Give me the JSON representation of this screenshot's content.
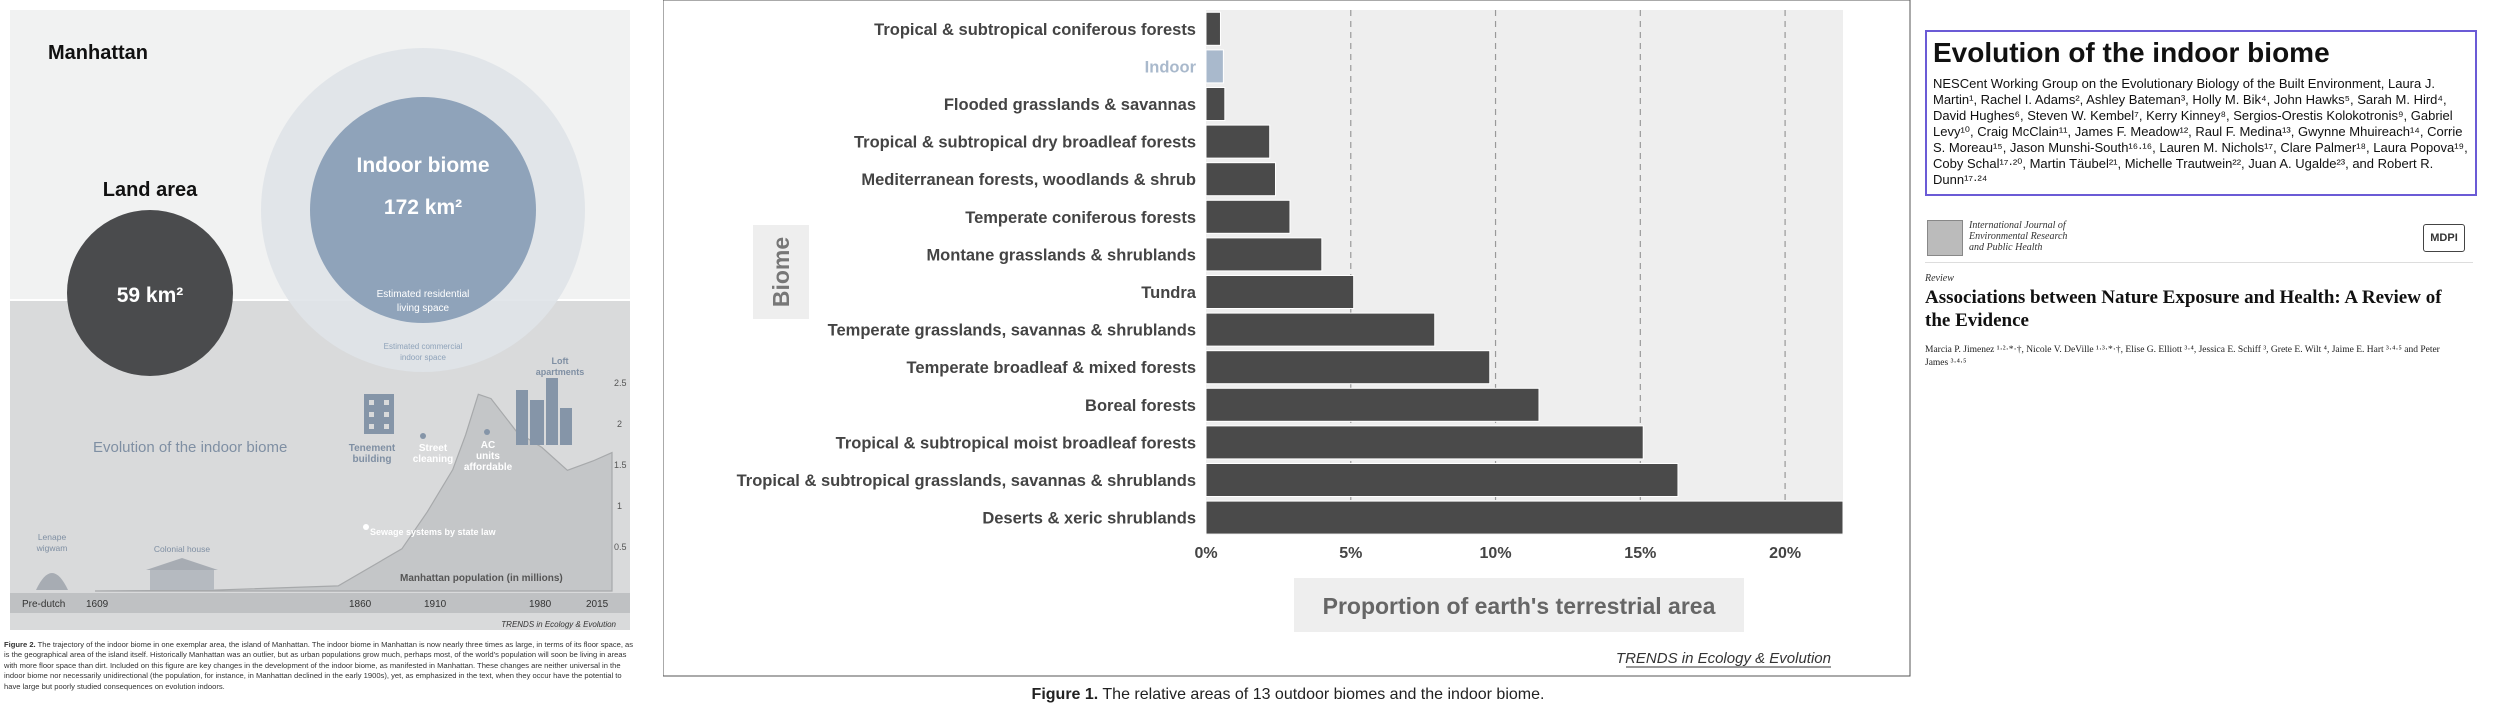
{
  "left_figure": {
    "city_label": "Manhattan",
    "land_area_label": "Land area",
    "land_area_value": "59 km²",
    "indoor_biome_label": "Indoor biome",
    "indoor_biome_value": "172 km²",
    "residential_label_1": "Estimated residential",
    "residential_label_2": "living space",
    "commercial_label_1": "Estimated commercial",
    "commercial_label_2": "indoor space",
    "evolution_label": "Evolution of the indoor biome",
    "events": [
      {
        "label_1": "Tenement",
        "label_2": "building"
      },
      {
        "label_1": "Street",
        "label_2": "cleaning"
      },
      {
        "label_1": "AC",
        "label_2": "units",
        "label_3": "affordable"
      },
      {
        "label_1": "Loft",
        "label_2": "apartments"
      }
    ],
    "sewage_label": "Sewage systems by state law",
    "lenape_label_1": "Lenape",
    "lenape_label_2": "wigwam",
    "colonial_label": "Colonial house",
    "population_label": "Manhattan population (in millions)",
    "y_ticks": [
      "2.5",
      "2",
      "1.5",
      "1",
      "0.5"
    ],
    "x_ticks": [
      "Pre-dutch",
      "1609",
      "1860",
      "1910",
      "1980",
      "2015"
    ],
    "journal_credit": "TRENDS in Ecology & Evolution",
    "population_series": {
      "years": [
        1609,
        1700,
        1800,
        1850,
        1870,
        1890,
        1900,
        1910,
        1920,
        1940,
        1960,
        1980,
        2000,
        2015
      ],
      "values": [
        0.0,
        0.01,
        0.06,
        0.5,
        0.94,
        1.44,
        1.85,
        2.33,
        2.28,
        1.89,
        1.7,
        1.43,
        1.54,
        1.64
      ]
    },
    "caption_label": "Figure 2.",
    "caption_text": "The trajectory of the indoor biome in one exemplar area, the island of Manhattan. The indoor biome in Manhattan is now nearly three times as large, in terms of its floor space, as is the geographical area of the island itself. Historically Manhattan was an outlier, but as urban populations grow much, perhaps most, of the world's population will soon be living in areas with more floor space than dirt. Included on this figure are key changes in the development of the indoor biome, as manifested in Manhattan. These changes are neither universal in the indoor biome nor necessarily unidirectional (the population, for instance, in Manhattan declined in the early 1900s), yet, as emphasized in the text, when they occur have the potential to have large but poorly studied consequences on evolution indoors."
  },
  "chart_data": {
    "type": "bar",
    "orientation": "horizontal",
    "title": "",
    "xlabel": "Proportion of earth's terrestrial area",
    "ylabel": "Biome",
    "xlim": [
      0,
      22
    ],
    "x_ticks": [
      "0%",
      "5%",
      "10%",
      "15%",
      "20%"
    ],
    "grid": true,
    "categories": [
      "Tropical & subtropical coniferous forests",
      "Indoor",
      "Flooded grasslands & savannas",
      "Tropical & subtropical dry broadleaf forests",
      "Mediterranean forests, woodlands & shrub",
      "Temperate coniferous forests",
      "Montane grasslands & shrublands",
      "Tundra",
      "Temperate grasslands, savannas & shrublands",
      "Temperate broadleaf & mixed forests",
      "Boreal forests",
      "Tropical & subtropical moist broadleaf forests",
      "Tropical & subtropical grasslands, savannas & shrublands",
      "Deserts & xeric shrublands"
    ],
    "values": [
      0.5,
      0.6,
      0.65,
      2.2,
      2.4,
      2.9,
      4.0,
      5.1,
      7.9,
      9.8,
      11.5,
      15.1,
      16.3,
      22.0
    ],
    "bar_color": "#4a4a4a",
    "highlight_color": "#a9b9cc",
    "highlight_category": "Indoor",
    "credit": "TRENDS in Ecology & Evolution",
    "caption_label": "Figure 1.",
    "caption_text": "The relative areas of 13 outdoor biomes and the indoor biome."
  },
  "paper": {
    "title": "Evolution of the indoor biome",
    "authors": "NESCent Working Group on the Evolutionary Biology of the Built Environment, Laura J. Martin¹, Rachel I. Adams², Ashley Bateman³, Holly M. Bik⁴, John Hawks⁵, Sarah M. Hird⁴, David Hughes⁶, Steven W. Kembel⁷, Kerry Kinney⁸, Sergios-Orestis Kolokotronis⁹, Gabriel Levy¹⁰, Craig McClain¹¹, James F. Meadow¹², Raul F. Medina¹³, Gwynne Mhuireach¹⁴, Corrie S. Moreau¹⁵, Jason Munshi-South¹⁶·¹⁶, Lauren M. Nichols¹⁷, Clare Palmer¹⁸, Laura Popova¹⁹, Coby Schal¹⁷·²⁰, Martin Täubel²¹, Michelle Trautwein²², Juan A. Ugalde²³, and Robert R. Dunn¹⁷·²⁴",
    "journal_name_1": "International Journal of",
    "journal_name_2": "Environmental Research",
    "journal_name_3": "and Public Health",
    "publisher": "MDPI",
    "article_type": "Review",
    "article_title": "Associations between Nature Exposure and Health: A Review of the Evidence",
    "article_authors": "Marcia P. Jimenez ¹·²·*·†, Nicole V. DeVille ¹·³·*·†, Elise G. Elliott ³·⁴, Jessica E. Schiff ³, Grete E. Wilt ⁴, Jaime E. Hart ³·⁴·⁵ and Peter James ³·⁴·⁵"
  }
}
